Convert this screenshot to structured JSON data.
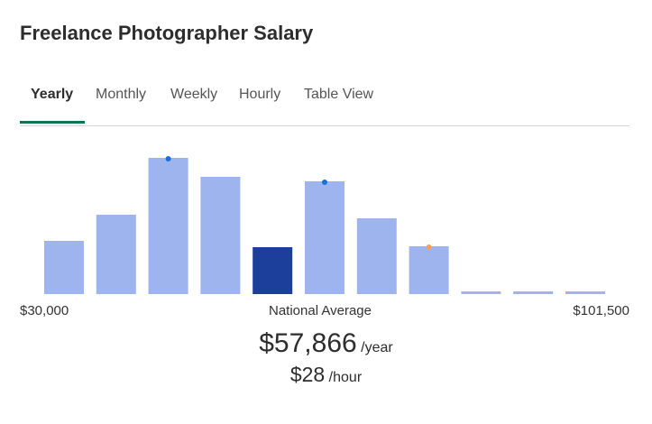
{
  "header": {
    "title": "Freelance Photographer Salary"
  },
  "tabs": [
    "Yearly",
    "Monthly",
    "Weekly",
    "Hourly",
    "Table View"
  ],
  "chart_data": {
    "type": "bar",
    "values": [
      59,
      88,
      151,
      130,
      52,
      125,
      84,
      53,
      3,
      3,
      3
    ],
    "colors": [
      "#9db4ee",
      "#9db4ee",
      "#9db4ee",
      "#9db4ee",
      "#1c3f9b",
      "#9db4ee",
      "#9db4ee",
      "#9db4ee",
      "#9db4ee",
      "#9db4ee",
      "#9db4ee"
    ],
    "dot_colors": [
      null,
      null,
      "#1a6fdc",
      null,
      null,
      "#1a6fdc",
      null,
      "#f5a05a",
      null,
      null,
      null
    ],
    "min_label": "$30,000",
    "center_label": "National Average",
    "max_label": "$101,500"
  },
  "salary": {
    "yearly": "$57,866",
    "yearly_unit": "/year",
    "hourly": "$28",
    "hourly_unit": "/hour"
  }
}
